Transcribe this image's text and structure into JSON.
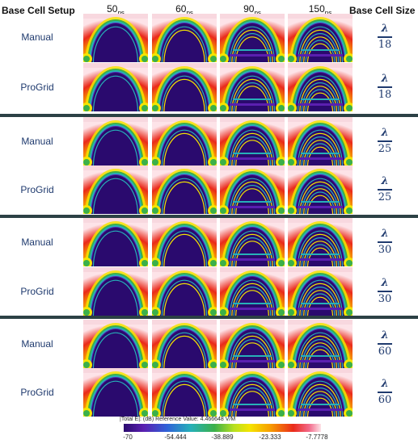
{
  "headers": {
    "base_cell_setup": "Base Cell Setup",
    "base_cell_size": "Base Cell Size"
  },
  "times": [
    {
      "value": "50",
      "unit": "ps"
    },
    {
      "value": "60",
      "unit": "ps"
    },
    {
      "value": "90",
      "unit": "ps"
    },
    {
      "value": "150",
      "unit": "ps"
    }
  ],
  "rows": [
    {
      "setup": "Manual",
      "numerator": "λ",
      "denominator": "18"
    },
    {
      "setup": "ProGrid",
      "numerator": "λ",
      "denominator": "18"
    },
    {
      "setup": "Manual",
      "numerator": "λ",
      "denominator": "25"
    },
    {
      "setup": "ProGrid",
      "numerator": "λ",
      "denominator": "25"
    },
    {
      "setup": "Manual",
      "numerator": "λ",
      "denominator": "30"
    },
    {
      "setup": "ProGrid",
      "numerator": "λ",
      "denominator": "30"
    },
    {
      "setup": "Manual",
      "numerator": "λ",
      "denominator": "60"
    },
    {
      "setup": "ProGrid",
      "numerator": "λ",
      "denominator": "60"
    }
  ],
  "colorbar": {
    "title": "|Total E|: (dB) Reference Value: 4.466648 V/M",
    "ticks": [
      "-70",
      "-54.444",
      "-38.889",
      "-23.333",
      "-7.7778"
    ]
  },
  "colors": {
    "label_blue": "#1f3a6e",
    "divider": "#2c4145",
    "field_interior": "#2a0a6e"
  }
}
